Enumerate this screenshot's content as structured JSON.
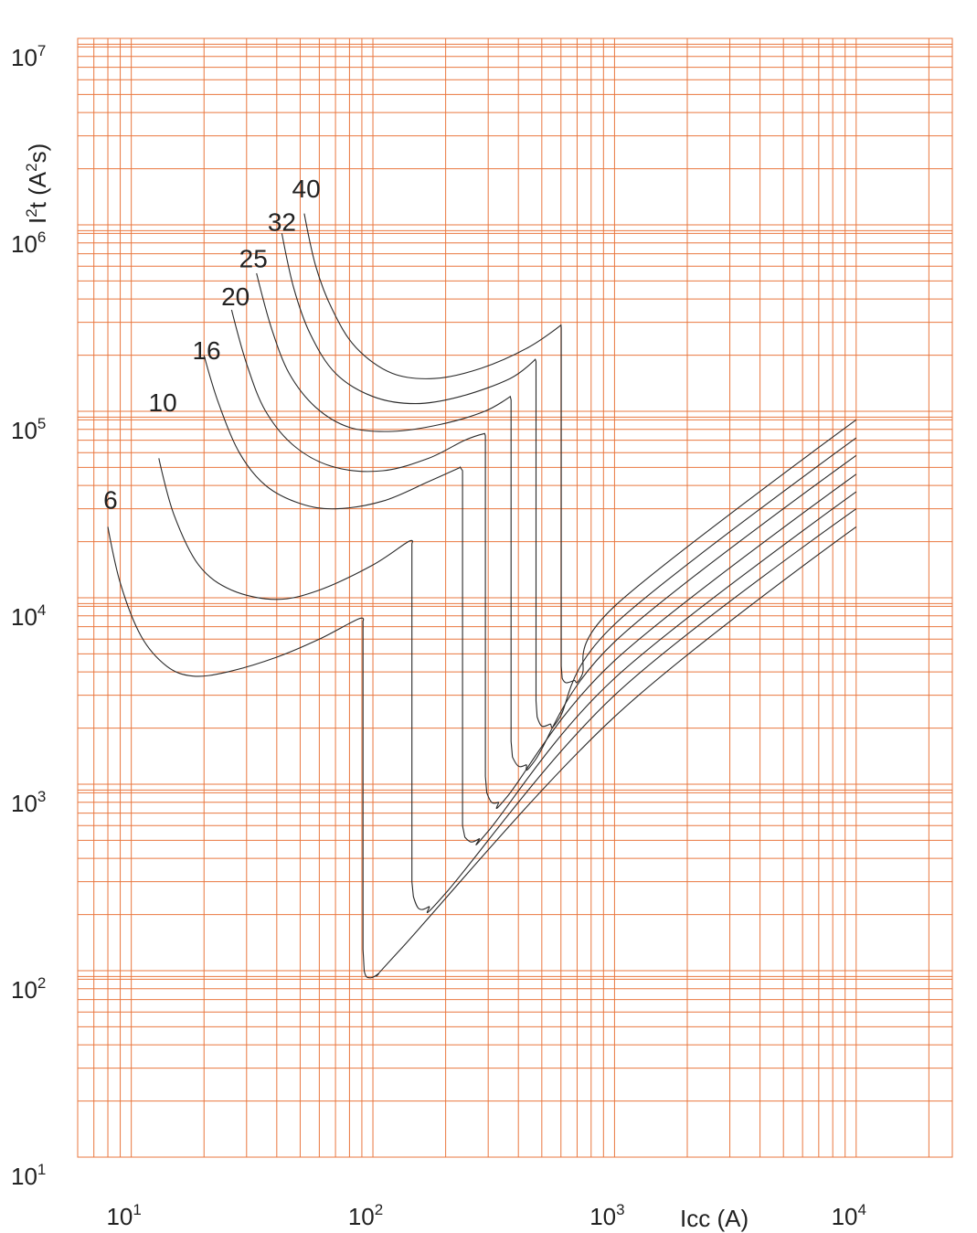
{
  "chart_data": {
    "type": "line",
    "title": "",
    "x_axis": {
      "label": "Icc (A)",
      "scale": "log",
      "range": [
        6,
        25000
      ],
      "ticks": [
        {
          "value": 10,
          "base": "10",
          "exp": "1"
        },
        {
          "value": 100,
          "base": "10",
          "exp": "2"
        },
        {
          "value": 1000,
          "base": "10",
          "exp": "3"
        },
        {
          "value": 10000,
          "base": "10",
          "exp": "4"
        }
      ]
    },
    "y_axis": {
      "label": {
        "base": "I",
        "exp1": "2",
        "mid": "t (A",
        "exp2": "2",
        "end": "s)"
      },
      "scale": "log",
      "range": [
        10,
        10000000
      ],
      "ticks": [
        {
          "value": 10,
          "base": "10",
          "exp": "1"
        },
        {
          "value": 100,
          "base": "10",
          "exp": "2"
        },
        {
          "value": 1000,
          "base": "10",
          "exp": "3"
        },
        {
          "value": 10000,
          "base": "10",
          "exp": "4"
        },
        {
          "value": 100000,
          "base": "10",
          "exp": "5"
        },
        {
          "value": 1000000,
          "base": "10",
          "exp": "6"
        },
        {
          "value": 10000000,
          "base": "10",
          "exp": "7"
        }
      ]
    },
    "grid": true,
    "grid_color": "#e9773f",
    "line_color": "#2a2a2a",
    "series": [
      {
        "name": "6",
        "label_at": [
          8.2,
          30000
        ],
        "points": [
          [
            8.0,
            24000
          ],
          [
            9.0,
            12000
          ],
          [
            11,
            6200
          ],
          [
            14,
            4300
          ],
          [
            18,
            3800
          ],
          [
            25,
            4000
          ],
          [
            40,
            4800
          ],
          [
            60,
            6000
          ],
          [
            87,
            7700
          ],
          [
            91,
            7500
          ],
          [
            91,
            130
          ],
          [
            92,
            100
          ],
          [
            95,
            92
          ],
          [
            105,
            96
          ],
          [
            130,
            130
          ],
          [
            1000,
            2300
          ],
          [
            10000,
            24000
          ]
        ]
      },
      {
        "name": "10",
        "label_at": [
          13.5,
          100000
        ],
        "points": [
          [
            13,
            56000
          ],
          [
            15,
            28000
          ],
          [
            19,
            15000
          ],
          [
            26,
            11000
          ],
          [
            40,
            9800
          ],
          [
            60,
            11000
          ],
          [
            100,
            15000
          ],
          [
            140,
            20000
          ],
          [
            145,
            19500
          ],
          [
            145,
            300
          ],
          [
            147,
            250
          ],
          [
            155,
            215
          ],
          [
            170,
            220
          ],
          [
            200,
            260
          ],
          [
            1000,
            3000
          ],
          [
            10000,
            30000
          ]
        ]
      },
      {
        "name": "16",
        "label_at": [
          20.5,
          190000
        ],
        "points": [
          [
            20,
            200000
          ],
          [
            23,
            110000
          ],
          [
            28,
            60000
          ],
          [
            36,
            40000
          ],
          [
            50,
            32000
          ],
          [
            70,
            30000
          ],
          [
            110,
            33000
          ],
          [
            170,
            42000
          ],
          [
            230,
            50000
          ],
          [
            235,
            48000
          ],
          [
            235,
            600
          ],
          [
            240,
            520
          ],
          [
            255,
            490
          ],
          [
            275,
            510
          ],
          [
            300,
            560
          ],
          [
            1000,
            3700
          ],
          [
            10000,
            37000
          ]
        ]
      },
      {
        "name": "20",
        "label_at": [
          27,
          370000
        ],
        "points": [
          [
            26,
            350000
          ],
          [
            30,
            180000
          ],
          [
            36,
            100000
          ],
          [
            48,
            64000
          ],
          [
            70,
            50000
          ],
          [
            110,
            48000
          ],
          [
            170,
            56000
          ],
          [
            240,
            70000
          ],
          [
            290,
            76000
          ],
          [
            292,
            74000
          ],
          [
            292,
            1100
          ],
          [
            296,
            900
          ],
          [
            310,
            800
          ],
          [
            330,
            800
          ],
          [
            360,
            860
          ],
          [
            1000,
            4600
          ],
          [
            10000,
            46000
          ]
        ]
      },
      {
        "name": "25",
        "label_at": [
          32,
          590000
        ],
        "points": [
          [
            33,
            550000
          ],
          [
            38,
            280000
          ],
          [
            45,
            160000
          ],
          [
            58,
            105000
          ],
          [
            80,
            82000
          ],
          [
            120,
            78000
          ],
          [
            190,
            85000
          ],
          [
            290,
            100000
          ],
          [
            370,
            120000
          ],
          [
            373,
            115000
          ],
          [
            373,
            1700
          ],
          [
            378,
            1400
          ],
          [
            400,
            1250
          ],
          [
            430,
            1270
          ],
          [
            470,
            1350
          ],
          [
            1000,
            5800
          ],
          [
            10000,
            58000
          ]
        ]
      },
      {
        "name": "32",
        "label_at": [
          42,
          930000
        ],
        "points": [
          [
            42,
            900000
          ],
          [
            47,
            460000
          ],
          [
            55,
            260000
          ],
          [
            70,
            160000
          ],
          [
            100,
            120000
          ],
          [
            150,
            110000
          ],
          [
            230,
            120000
          ],
          [
            370,
            150000
          ],
          [
            470,
            190000
          ],
          [
            473,
            185000
          ],
          [
            473,
            2800
          ],
          [
            478,
            2300
          ],
          [
            500,
            2050
          ],
          [
            540,
            2100
          ],
          [
            590,
            2250
          ],
          [
            1000,
            7200
          ],
          [
            10000,
            72000
          ]
        ]
      },
      {
        "name": "40",
        "label_at": [
          53,
          1400000
        ],
        "points": [
          [
            52,
            1150000
          ],
          [
            58,
            600000
          ],
          [
            68,
            350000
          ],
          [
            85,
            220000
          ],
          [
            120,
            160000
          ],
          [
            180,
            150000
          ],
          [
            280,
            170000
          ],
          [
            440,
            220000
          ],
          [
            600,
            290000
          ],
          [
            602,
            280000
          ],
          [
            602,
            4300
          ],
          [
            607,
            3700
          ],
          [
            630,
            3500
          ],
          [
            680,
            3600
          ],
          [
            730,
            3800
          ],
          [
            1000,
            9000
          ],
          [
            10000,
            90000
          ]
        ]
      }
    ]
  }
}
